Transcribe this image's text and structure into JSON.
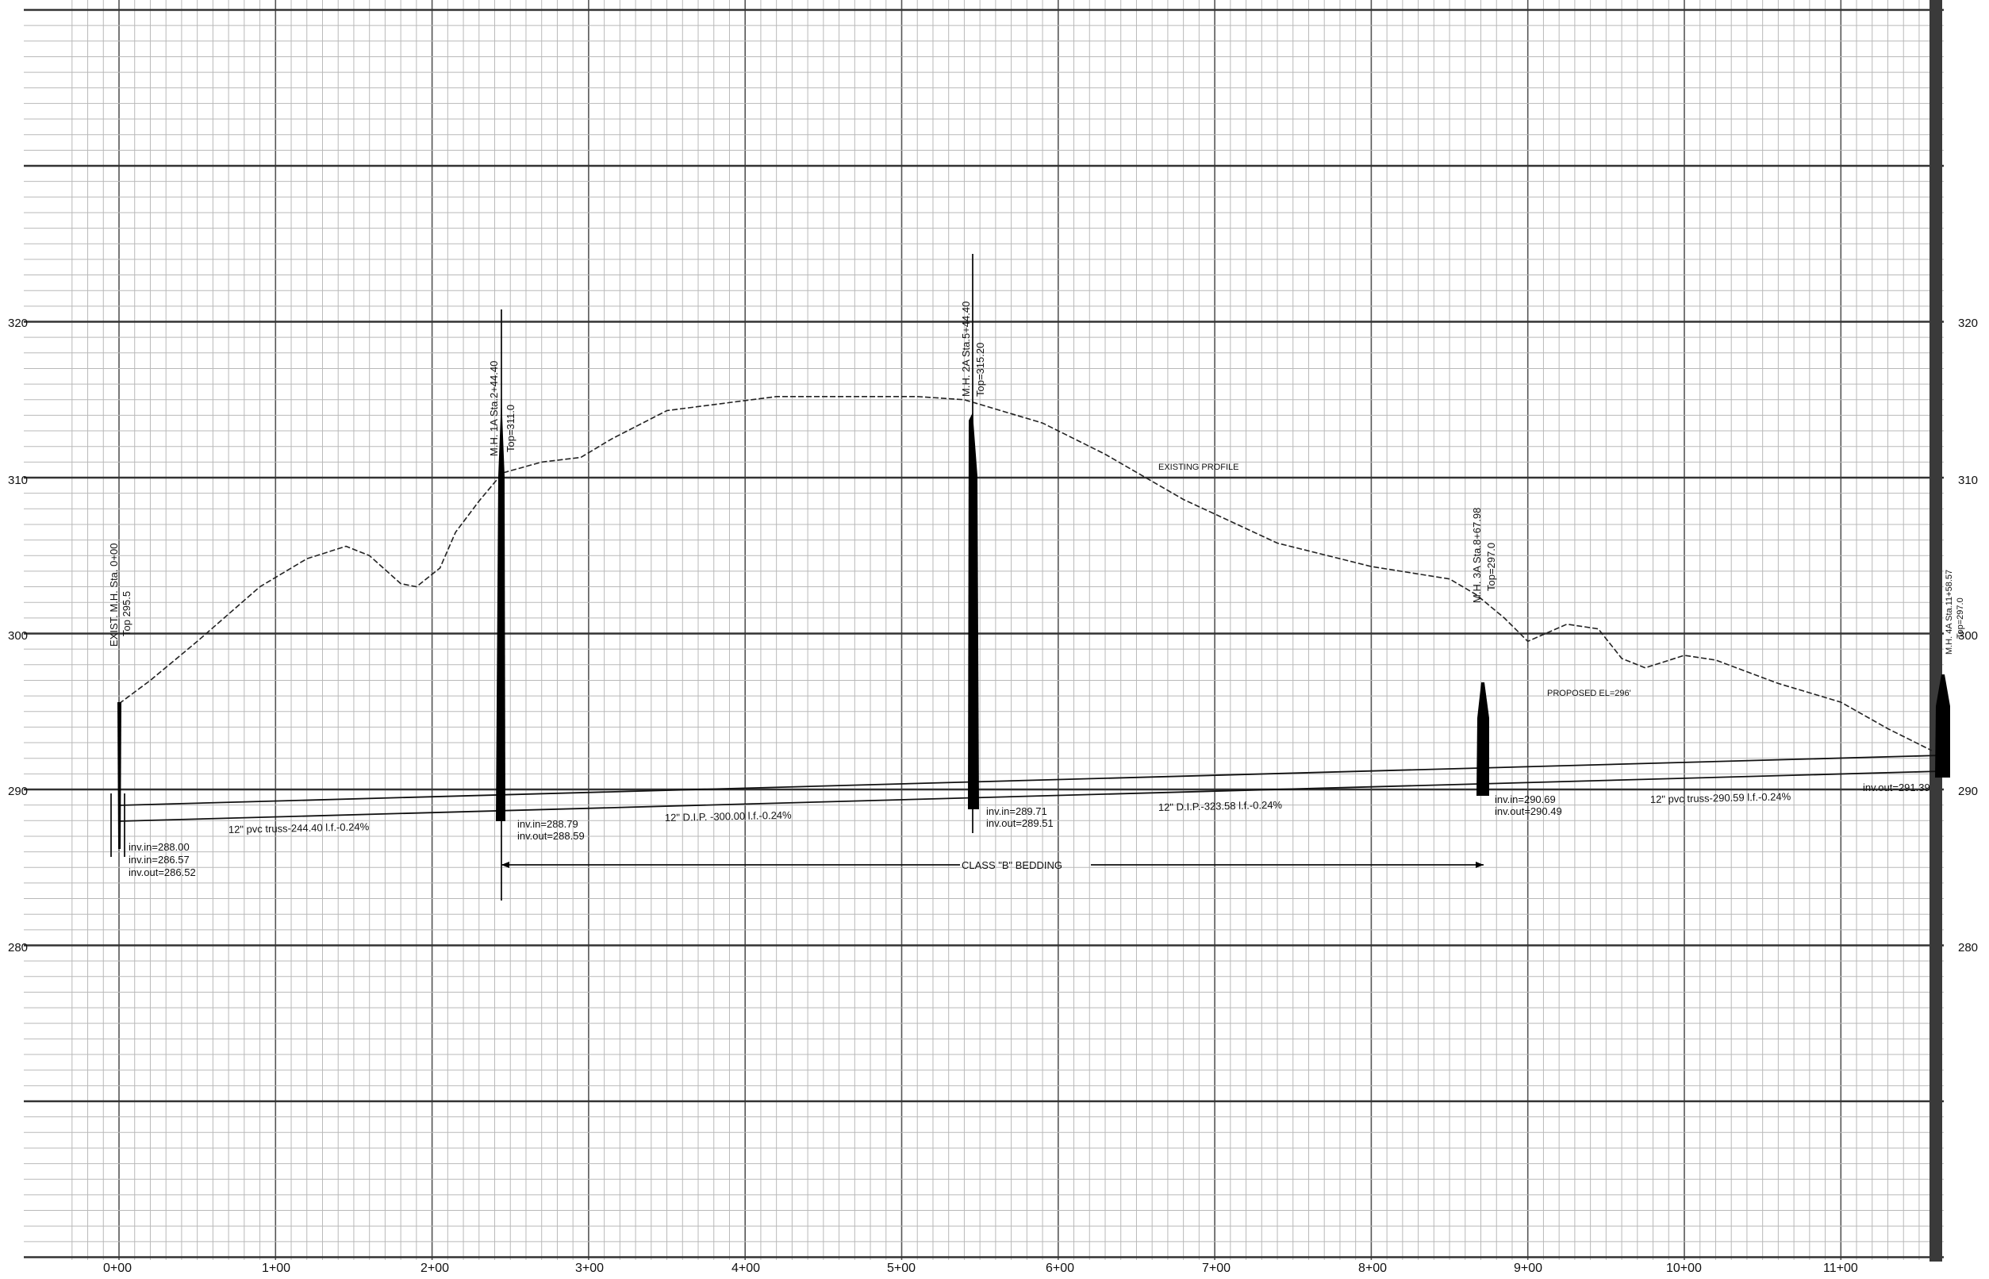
{
  "sheet": {
    "elevation_ticks_left": [
      "320",
      "310",
      "300",
      "290",
      "280"
    ],
    "elevation_ticks_right": [
      "320",
      "310",
      "300",
      "290",
      "280"
    ],
    "station_ticks": [
      "0+00",
      "1+00",
      "2+00",
      "3+00",
      "4+00",
      "5+00",
      "6+00",
      "7+00",
      "8+00",
      "9+00",
      "10+00",
      "11+00"
    ]
  },
  "profile": {
    "label": "EXISTING PROFILE"
  },
  "proposed": {
    "label": "PROPOSED EL=296'"
  },
  "manholes": [
    {
      "title": "EXIST. M.H.   Sta. 0+00",
      "top": "Top 295.5",
      "inverts": [
        "inv.in=288.00",
        "inv.in=286.57",
        "inv.out=286.52"
      ]
    },
    {
      "title": "M.H. 1A  Sta.2+44.40",
      "top": "Top=311.0",
      "inverts": [
        "inv.in=288.79",
        "inv.out=288.59"
      ]
    },
    {
      "title": "M.H. 2A  Sta.5+44.40",
      "top": "Top=315.20",
      "inverts": [
        "inv.in=289.71",
        "inv.out=289.51"
      ]
    },
    {
      "title": "M.H. 3A Sta.8+67.98",
      "top": "Top=297.0",
      "inverts": [
        "inv.in=290.69",
        "inv.out=290.49"
      ]
    },
    {
      "title": "M.H. 4A Sta.11+58.57",
      "top": "Top=297.0",
      "inverts": [
        "inv.out=291.39"
      ]
    }
  ],
  "pipes": [
    {
      "label": "12\" pvc truss-244.40 l.f.-0.24%"
    },
    {
      "label": "12\" D.I.P. -300.00 l.f.-0.24%"
    },
    {
      "label": "12\" D.I.P.-323.58 l.f.-0.24%"
    },
    {
      "label": "12\" pvc truss-290.59 l.f.-0.24%"
    }
  ],
  "bedding": {
    "label": "CLASS \"B\" BEDDING"
  },
  "chart_data": {
    "type": "line",
    "xlim": [
      -0.4,
      11.8
    ],
    "ylim": [
      270,
      340
    ],
    "series": [
      {
        "values_x": [
          0.0,
          0.2,
          0.5,
          0.9,
          1.2,
          1.45,
          1.6,
          1.8,
          1.9,
          2.05,
          2.15,
          2.3,
          2.45,
          2.7,
          2.95,
          3.15,
          3.5,
          4.2,
          5.1,
          5.4,
          5.9,
          6.3,
          6.8,
          7.4,
          8.0,
          8.5,
          8.67,
          8.85,
          9.0,
          9.25,
          9.45,
          9.6,
          9.75,
          10.0,
          10.2,
          10.6,
          11.0,
          11.3,
          11.58
        ],
        "values_y": [
          295.5,
          297.0,
          299.5,
          303.0,
          304.8,
          305.6,
          305.0,
          303.2,
          303.0,
          304.2,
          306.5,
          308.5,
          310.3,
          311.0,
          311.3,
          312.5,
          314.3,
          315.2,
          315.2,
          315.0,
          313.5,
          311.5,
          308.6,
          305.8,
          304.3,
          303.5,
          302.5,
          301.0,
          299.5,
          300.6,
          300.3,
          298.4,
          297.8,
          298.6,
          298.3,
          296.8,
          295.6,
          293.9,
          292.5
        ]
      }
    ]
  }
}
